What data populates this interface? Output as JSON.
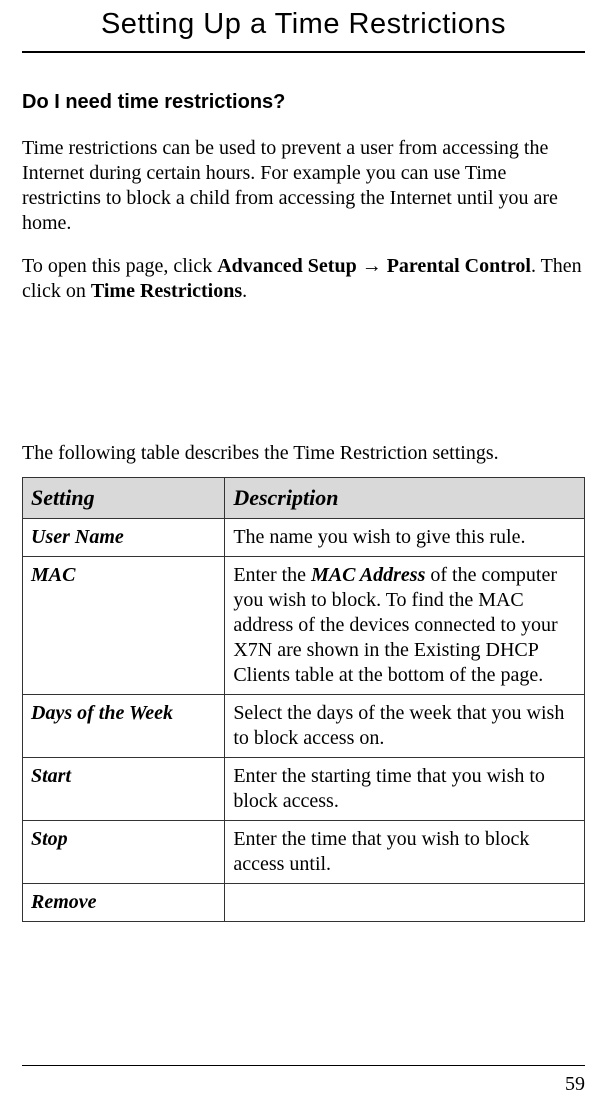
{
  "chapter_title": "Setting Up a Time Restrictions",
  "section_heading": "Do I need time restrictions?",
  "para1": "Time restrictions can be used to prevent a user from accessing the Internet during certain hours.  For example you can use Time restrictins to block a child from accessing the Internet until you are home.",
  "para2_prefix": "To open this page, click ",
  "para2_path_a": "Advanced Setup ",
  "para2_arrow": "→",
  "para2_path_b": " Parental Control",
  "para2_mid": ".  Then click on ",
  "para2_path_c": "Time Restrictions",
  "para2_suffix": ".",
  "table_intro": "The following table describes the Time Restriction settings.",
  "table": {
    "header_setting": "Setting",
    "header_description": "Description",
    "rows": [
      {
        "setting": "User Name",
        "desc_pre": "The name you wish to give this rule.",
        "mac_bold": "",
        "desc_post": ""
      },
      {
        "setting": "MAC",
        "desc_pre": "Enter the ",
        "mac_bold": "MAC Address",
        "desc_post": " of the computer you wish to block.  To find the MAC address of the devices connected to your X7N are shown in the Existing DHCP Clients table at the bottom of the page."
      },
      {
        "setting": "Days of the Week",
        "desc_pre": "Select the days of the week that you wish to block access on.",
        "mac_bold": "",
        "desc_post": ""
      },
      {
        "setting": "Start",
        "desc_pre": "Enter the starting time that you wish to block access.",
        "mac_bold": "",
        "desc_post": ""
      },
      {
        "setting": "Stop",
        "desc_pre": "Enter the time that you wish to block access until.",
        "mac_bold": "",
        "desc_post": ""
      },
      {
        "setting": "Remove",
        "desc_pre": "",
        "mac_bold": "",
        "desc_post": ""
      }
    ]
  },
  "page_number": "59",
  "colors": {
    "header_bg": "#d9d9d9",
    "text": "#000000",
    "bg": "#ffffff"
  }
}
